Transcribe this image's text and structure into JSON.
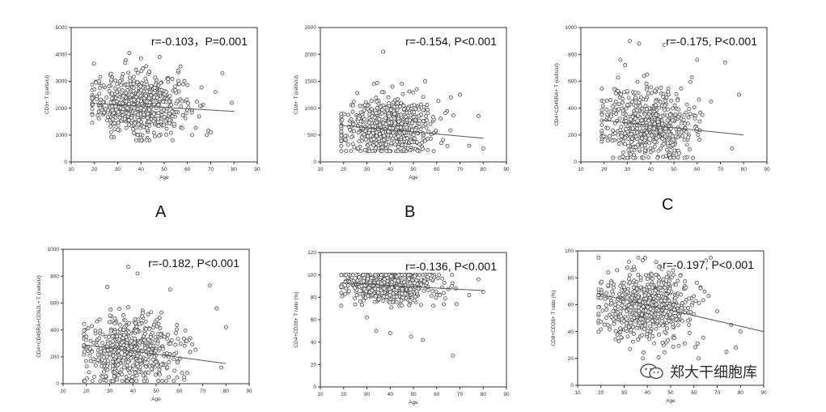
{
  "chart_data": [
    {
      "type": "scatter",
      "panel_letter": "A",
      "stat_label": "r=-0.103，P=0.001",
      "xlabel": "Age",
      "ylabel": "CD3+ T (cells/ul)",
      "xlim": [
        10,
        90
      ],
      "ylim": [
        0,
        5000
      ],
      "xticks": [
        10,
        20,
        30,
        40,
        50,
        60,
        70,
        80,
        90
      ],
      "yticks": [
        0,
        1000,
        2000,
        3000,
        4000,
        5000
      ],
      "trend": {
        "x": [
          19,
          80
        ],
        "y": [
          2180,
          1880
        ]
      },
      "cloud": {
        "n": 620,
        "x_mean": 39,
        "x_sd": 10,
        "x_min": 19,
        "x_max": 80,
        "y_mean": 2150,
        "y_sd": 550,
        "y_min": 800,
        "y_max": 4000
      },
      "points": [
        [
          20,
          2700
        ],
        [
          48,
          3900
        ],
        [
          56,
          3400
        ],
        [
          75,
          3300
        ],
        [
          79,
          2200
        ],
        [
          72,
          2600
        ],
        [
          57,
          3550
        ],
        [
          40,
          3850
        ],
        [
          35,
          4050
        ],
        [
          38,
          800
        ],
        [
          70,
          1100
        ],
        [
          62,
          1000
        ]
      ]
    },
    {
      "type": "scatter",
      "panel_letter": "B",
      "stat_label": "r=-0.154, P<0.001",
      "xlabel": "Age",
      "ylabel": "CD8+ T (cells/ul)",
      "xlim": [
        10,
        90
      ],
      "ylim": [
        0,
        2500
      ],
      "xticks": [
        10,
        20,
        30,
        40,
        50,
        60,
        70,
        80,
        90
      ],
      "yticks": [
        0,
        500,
        1000,
        1500,
        2000,
        2500
      ],
      "trend": {
        "x": [
          19,
          80
        ],
        "y": [
          680,
          440
        ]
      },
      "cloud": {
        "n": 620,
        "x_mean": 39,
        "x_sd": 10,
        "x_min": 19,
        "x_max": 80,
        "y_mean": 650,
        "y_sd": 260,
        "y_min": 200,
        "y_max": 1500
      },
      "points": [
        [
          37,
          2050
        ],
        [
          41,
          1400
        ],
        [
          55,
          1500
        ],
        [
          70,
          1250
        ],
        [
          78,
          850
        ],
        [
          74,
          300
        ],
        [
          80,
          250
        ],
        [
          62,
          350
        ],
        [
          33,
          1450
        ],
        [
          45,
          1450
        ]
      ]
    },
    {
      "type": "scatter",
      "panel_letter": "C",
      "stat_label": "r=-0.175, P<0.001",
      "xlabel": "",
      "ylabel": "CD4+CD45RA+ T (cells/ul)",
      "xlim": [
        10,
        90
      ],
      "ylim": [
        0,
        1000
      ],
      "xticks": [
        10,
        20,
        30,
        40,
        50,
        60,
        70,
        80,
        90
      ],
      "yticks": [
        0,
        200,
        400,
        600,
        800,
        1000
      ],
      "trend": {
        "x": [
          19,
          80
        ],
        "y": [
          310,
          200
        ]
      },
      "cloud": {
        "n": 580,
        "x_mean": 39,
        "x_sd": 10,
        "x_min": 19,
        "x_max": 80,
        "y_mean": 270,
        "y_sd": 140,
        "y_min": 30,
        "y_max": 650
      },
      "points": [
        [
          31,
          900
        ],
        [
          35,
          880
        ],
        [
          46,
          870
        ],
        [
          27,
          760
        ],
        [
          29,
          720
        ],
        [
          60,
          760
        ],
        [
          72,
          740
        ],
        [
          78,
          500
        ],
        [
          75,
          100
        ],
        [
          66,
          450
        ],
        [
          19,
          350
        ]
      ]
    },
    {
      "type": "scatter",
      "panel_letter": "",
      "stat_label": "r=-0.182, P<0.001",
      "xlabel": "Age",
      "ylabel": "CD4+CD45RA+CD62L+ T (cells/ul)",
      "xlim": [
        10,
        90
      ],
      "ylim": [
        0,
        1000
      ],
      "xticks": [
        10,
        20,
        30,
        40,
        50,
        60,
        70,
        80,
        90
      ],
      "yticks": [
        0,
        200,
        400,
        600,
        800,
        1000
      ],
      "trend": {
        "x": [
          19,
          80
        ],
        "y": [
          290,
          150
        ]
      },
      "cloud": {
        "n": 560,
        "x_mean": 39,
        "x_sd": 10,
        "x_min": 19,
        "x_max": 80,
        "y_mean": 240,
        "y_sd": 130,
        "y_min": 20,
        "y_max": 650
      },
      "points": [
        [
          38,
          870
        ],
        [
          42,
          820
        ],
        [
          29,
          720
        ],
        [
          56,
          700
        ],
        [
          73,
          730
        ],
        [
          76,
          560
        ],
        [
          80,
          420
        ],
        [
          78,
          120
        ],
        [
          62,
          50
        ],
        [
          20,
          350
        ]
      ]
    },
    {
      "type": "scatter",
      "panel_letter": "",
      "stat_label": "r=-0.136, P<0.001",
      "xlabel": "Age",
      "ylabel": "CD4+CD28+ T ratio (%)",
      "xlim": [
        10,
        90
      ],
      "ylim": [
        0,
        120
      ],
      "xticks": [
        10,
        20,
        30,
        40,
        50,
        60,
        70,
        80,
        90
      ],
      "yticks": [
        0,
        20,
        40,
        60,
        80,
        100,
        120
      ],
      "trend": {
        "x": [
          19,
          80
        ],
        "y": [
          93,
          86
        ]
      },
      "cloud": {
        "n": 600,
        "x_mean": 39,
        "x_sd": 10,
        "x_min": 19,
        "x_max": 80,
        "y_mean": 91,
        "y_sd": 8,
        "y_min": 50,
        "y_max": 100
      },
      "points": [
        [
          67,
          28
        ],
        [
          34,
          50
        ],
        [
          40,
          48
        ],
        [
          49,
          45
        ],
        [
          54,
          42
        ],
        [
          30,
          62
        ],
        [
          78,
          96
        ],
        [
          74,
          82
        ],
        [
          80,
          85
        ],
        [
          26,
          95
        ]
      ]
    },
    {
      "type": "scatter",
      "panel_letter": "",
      "stat_label": "r=-0.197, P<0.001",
      "xlabel": "Age",
      "ylabel": "CD8+CD28+ T ratio (%)",
      "xlim": [
        10,
        90
      ],
      "ylim": [
        0,
        100
      ],
      "xticks": [
        10,
        20,
        30,
        40,
        50,
        60,
        70,
        80,
        90
      ],
      "yticks": [
        0,
        20,
        40,
        60,
        80,
        100
      ],
      "trend": {
        "x": [
          19,
          90
        ],
        "y": [
          68,
          40
        ]
      },
      "cloud": {
        "n": 620,
        "x_mean": 39,
        "x_sd": 10,
        "x_min": 19,
        "x_max": 80,
        "y_mean": 60,
        "y_sd": 13,
        "y_min": 20,
        "y_max": 95
      },
      "points": [
        [
          20,
          65
        ],
        [
          32,
          92
        ],
        [
          38,
          93
        ],
        [
          45,
          88
        ],
        [
          76,
          45
        ],
        [
          78,
          28
        ],
        [
          74,
          25
        ],
        [
          62,
          20
        ],
        [
          70,
          55
        ],
        [
          80,
          40
        ]
      ]
    }
  ],
  "watermark": {
    "text": "郑大干细胞库",
    "icon": "wechat-icon"
  }
}
